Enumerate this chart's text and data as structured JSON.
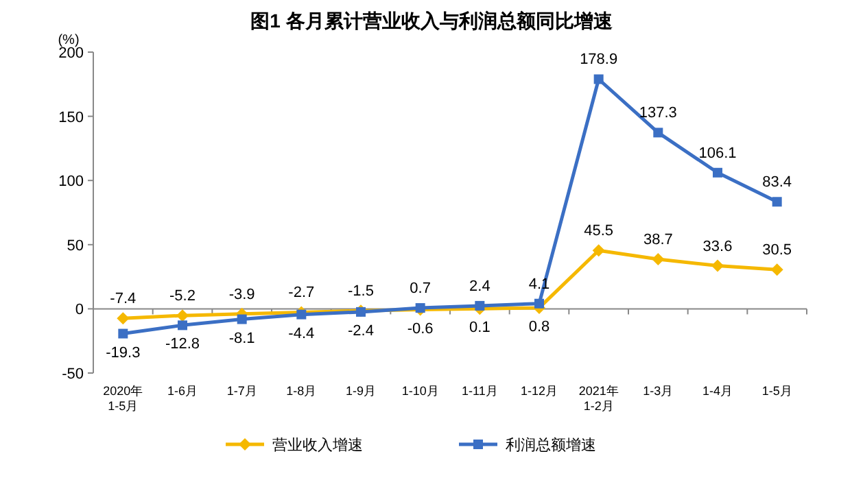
{
  "chart_data": {
    "type": "line",
    "title": "图1  各月累计营业收入与利润总额同比增速",
    "ylabel": "(%)",
    "categories": [
      "2020年\n1-5月",
      "1-6月",
      "1-7月",
      "1-8月",
      "1-9月",
      "1-10月",
      "1-11月",
      "1-12月",
      "2021年\n1-2月",
      "1-3月",
      "1-4月",
      "1-5月"
    ],
    "series": [
      {
        "name": "营业收入增速",
        "color": "#f5b800",
        "marker": "diamond",
        "values": [
          -7.4,
          -5.2,
          -3.9,
          -2.7,
          -1.5,
          -0.6,
          0.1,
          0.8,
          45.5,
          38.7,
          33.6,
          30.5
        ]
      },
      {
        "name": "利润总额增速",
        "color": "#3b6fc4",
        "marker": "square",
        "values": [
          -19.3,
          -12.8,
          -8.1,
          -4.4,
          -2.4,
          0.7,
          2.4,
          4.1,
          178.9,
          137.3,
          106.1,
          83.4
        ]
      }
    ],
    "ylim": [
      -50,
      200
    ],
    "yticks": [
      -50,
      0,
      50,
      100,
      150,
      200
    ],
    "legend": "bottom",
    "data_labels": true
  }
}
